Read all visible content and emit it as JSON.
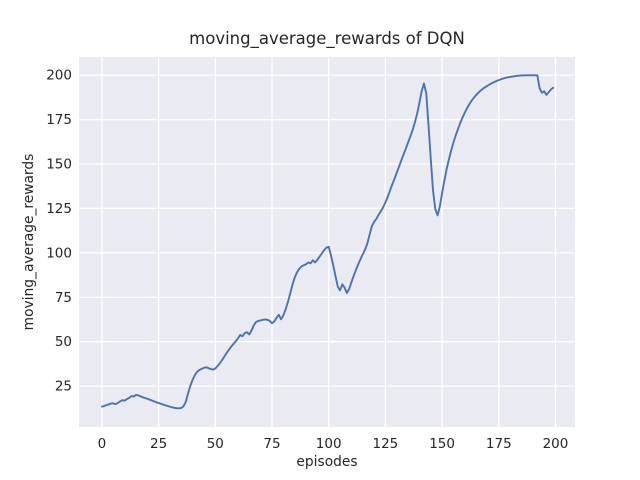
{
  "chart_data": {
    "type": "line",
    "title": "moving_average_rewards of DQN",
    "xlabel": "episodes",
    "ylabel": "moving_average_rewards",
    "x_ticks": [
      0,
      25,
      50,
      75,
      100,
      125,
      150,
      175,
      200
    ],
    "y_ticks": [
      25,
      50,
      75,
      100,
      125,
      150,
      175,
      200
    ],
    "xlim": [
      -10.1,
      208.6
    ],
    "ylim": [
      2.0,
      210.2
    ],
    "grid": true,
    "legend_position": "none",
    "style": "seaborn-darkgrid",
    "colors": {
      "line": "#4C72B0",
      "plot_background": "#EAEAF2",
      "gridline": "#FFFFFF",
      "text": "#262626",
      "figure_background": "#FFFFFF"
    },
    "series": [
      {
        "name": "moving_average_rewards",
        "x_start": 0,
        "x_step": 1,
        "y": [
          13.5,
          13.8,
          14.3,
          14.7,
          15.2,
          15.3,
          14.9,
          15.5,
          16.4,
          17.1,
          16.8,
          17.7,
          18.3,
          19.4,
          19.1,
          20.1,
          19.8,
          19.3,
          18.7,
          18.3,
          17.9,
          17.4,
          16.9,
          16.4,
          15.9,
          15.5,
          15.1,
          14.6,
          14.2,
          13.8,
          13.4,
          13.1,
          12.8,
          12.6,
          12.5,
          12.7,
          13.7,
          16.2,
          21.0,
          25.2,
          28.6,
          31.2,
          33.1,
          34.1,
          34.7,
          35.3,
          35.6,
          35.1,
          34.6,
          34.3,
          34.9,
          36.3,
          37.9,
          39.7,
          41.7,
          43.7,
          45.5,
          47.2,
          48.7,
          50.2,
          51.9,
          53.8,
          53.1,
          54.9,
          55.3,
          54.1,
          56.4,
          59.3,
          61.1,
          61.7,
          62.0,
          62.3,
          62.5,
          62.3,
          61.7,
          60.4,
          61.4,
          63.4,
          65.1,
          62.6,
          64.8,
          68.2,
          72.3,
          77.0,
          82.0,
          86.0,
          89.0,
          91.0,
          92.4,
          93.0,
          93.6,
          94.6,
          94.1,
          95.8,
          94.6,
          96.1,
          97.9,
          99.7,
          101.6,
          102.9,
          103.4,
          98.6,
          93.0,
          86.9,
          81.0,
          78.9,
          82.3,
          80.4,
          77.4,
          79.6,
          83.4,
          87.0,
          90.4,
          93.5,
          96.4,
          99.1,
          101.7,
          105.1,
          110.0,
          114.9,
          117.4,
          119.1,
          121.4,
          123.4,
          125.6,
          128.4,
          131.4,
          134.9,
          138.4,
          141.6,
          145.1,
          148.5,
          152.0,
          155.4,
          158.6,
          162.1,
          165.5,
          169.1,
          173.4,
          178.3,
          184.4,
          191.0,
          195.3,
          189.9,
          172.0,
          153.0,
          135.0,
          124.6,
          121.1,
          126.1,
          133.6,
          140.6,
          147.1,
          152.6,
          157.6,
          162.1,
          166.1,
          169.6,
          173.1,
          176.1,
          178.9,
          181.4,
          183.6,
          185.6,
          187.3,
          188.8,
          190.1,
          191.3,
          192.3,
          193.2,
          194.0,
          194.8,
          195.5,
          196.1,
          196.7,
          197.2,
          197.7,
          198.1,
          198.5,
          198.8,
          199.0,
          199.2,
          199.4,
          199.6,
          199.7,
          199.8,
          199.8,
          199.9,
          199.9,
          199.9,
          199.9,
          199.9,
          199.9,
          192.6,
          190.1,
          190.9,
          188.9,
          190.4,
          191.9,
          192.9
        ]
      }
    ]
  }
}
